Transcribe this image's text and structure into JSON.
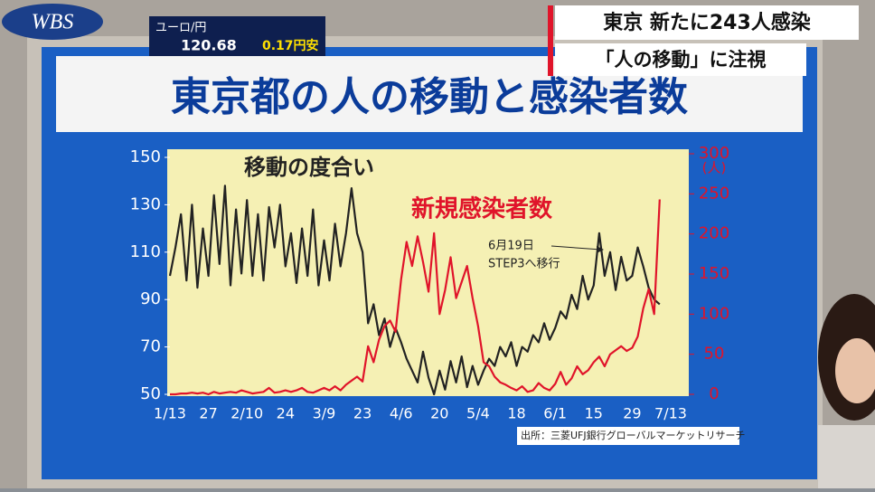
{
  "broadcast": {
    "logo": "WBS",
    "ticker": {
      "label": "ユーロ/円",
      "rate": "120.68",
      "change": "0.17円安"
    },
    "headlines": [
      "東京 新たに243人感染",
      "「人の移動」に注視"
    ]
  },
  "chart_data": {
    "type": "line",
    "title": "東京都の人の移動と感染者数",
    "categories": [
      "1/13",
      null,
      null,
      null,
      null,
      null,
      null,
      "27",
      null,
      null,
      null,
      null,
      null,
      null,
      "2/10",
      null,
      null,
      null,
      null,
      null,
      null,
      "24",
      null,
      null,
      null,
      null,
      null,
      null,
      "3/9",
      null,
      null,
      null,
      null,
      null,
      null,
      "23",
      null,
      null,
      null,
      null,
      null,
      null,
      "4/6",
      null,
      null,
      null,
      null,
      null,
      null,
      "20",
      null,
      null,
      null,
      null,
      null,
      null,
      "5/4",
      null,
      null,
      null,
      null,
      null,
      null,
      "18",
      null,
      null,
      null,
      null,
      null,
      null,
      "6/1",
      null,
      null,
      null,
      null,
      null,
      null,
      "15",
      null,
      null,
      null,
      null,
      null,
      null,
      "29",
      null,
      null,
      null,
      null,
      null,
      null,
      "7/13"
    ],
    "series": [
      {
        "name": "移動の度合い",
        "color": "#222222",
        "axis": "y",
        "values": [
          100,
          112,
          126,
          98,
          130,
          95,
          120,
          100,
          134,
          105,
          138,
          96,
          128,
          101,
          132,
          100,
          126,
          98,
          129,
          112,
          130,
          104,
          118,
          97,
          120,
          100,
          128,
          96,
          115,
          98,
          122,
          104,
          118,
          137,
          118,
          110,
          80,
          88,
          75,
          82,
          70,
          78,
          72,
          65,
          60,
          55,
          68,
          57,
          50,
          60,
          52,
          64,
          55,
          66,
          53,
          62,
          54,
          60,
          65,
          62,
          70,
          66,
          72,
          62,
          70,
          68,
          75,
          72,
          80,
          73,
          78,
          85,
          82,
          92,
          86,
          100,
          90,
          96,
          118,
          100,
          110,
          94,
          108,
          98,
          100,
          112,
          104,
          95,
          90,
          88,
          null,
          null
        ]
      },
      {
        "name": "新規感染者数",
        "color": "#e0142a",
        "axis": "y2",
        "values": [
          0,
          0,
          1,
          1,
          2,
          1,
          2,
          0,
          3,
          1,
          2,
          3,
          2,
          5,
          3,
          1,
          2,
          3,
          8,
          2,
          3,
          5,
          3,
          5,
          8,
          3,
          2,
          5,
          8,
          5,
          10,
          5,
          12,
          17,
          22,
          16,
          60,
          40,
          68,
          85,
          92,
          78,
          143,
          190,
          160,
          197,
          165,
          128,
          201,
          100,
          130,
          171,
          120,
          140,
          160,
          120,
          85,
          40,
          35,
          22,
          15,
          12,
          8,
          5,
          10,
          3,
          5,
          14,
          8,
          5,
          13,
          28,
          12,
          20,
          35,
          25,
          30,
          40,
          47,
          35,
          50,
          55,
          60,
          54,
          58,
          72,
          107,
          131,
          100,
          243,
          null,
          null
        ]
      }
    ],
    "ylim": [
      50,
      150
    ],
    "yticks": [
      50,
      70,
      90,
      110,
      130,
      150
    ],
    "y2lim": [
      0,
      300
    ],
    "y2ticks": [
      0,
      50,
      100,
      150,
      200,
      250,
      300
    ],
    "y2label": "(人)",
    "annotation": [
      "6月19日",
      "STEP3へ移行"
    ],
    "source": "出所：三菱UFJ銀行グローバルマーケットリサーチ"
  }
}
